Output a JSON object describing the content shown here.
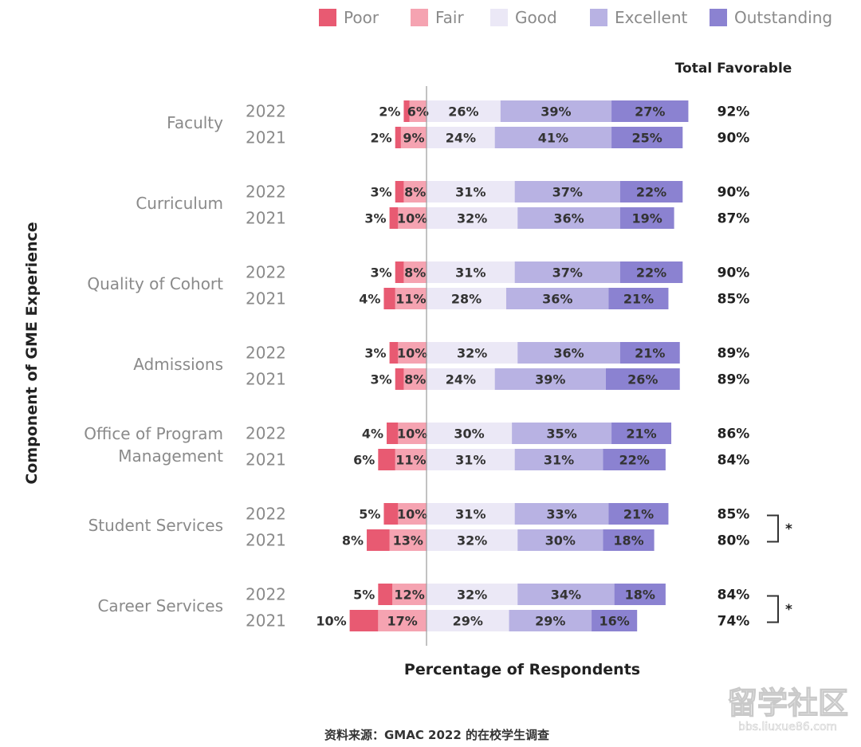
{
  "chart_data": {
    "type": "bar",
    "stacked": true,
    "orientation": "horizontal",
    "diverging": true,
    "xlabel": "Percentage of Respondents",
    "ylabel": "Component of GME Experience",
    "total_header": "Total Favorable",
    "legend": [
      {
        "name": "Poor",
        "color": "#e85a72"
      },
      {
        "name": "Fair",
        "color": "#f5a3b1"
      },
      {
        "name": "Good",
        "color": "#ebe8f6"
      },
      {
        "name": "Excellent",
        "color": "#b8b2e3"
      },
      {
        "name": "Outstanding",
        "color": "#8b82d1"
      }
    ],
    "legend_placement": "top",
    "groups": [
      {
        "category": "Faculty",
        "rows": [
          {
            "year": "2022",
            "values": [
              2,
              6,
              26,
              39,
              27
            ],
            "labels": [
              "2%",
              "6%",
              "26%",
              "39%",
              "27%"
            ],
            "total": "92%"
          },
          {
            "year": "2021",
            "values": [
              2,
              9,
              24,
              41,
              25
            ],
            "labels": [
              "2%",
              "9%",
              "24%",
              "41%",
              "25%"
            ],
            "total": "90%"
          }
        ]
      },
      {
        "category": "Curriculum",
        "rows": [
          {
            "year": "2022",
            "values": [
              3,
              8,
              31,
              37,
              22
            ],
            "labels": [
              "3%",
              "8%",
              "31%",
              "37%",
              "22%"
            ],
            "total": "90%"
          },
          {
            "year": "2021",
            "values": [
              3,
              10,
              32,
              36,
              19
            ],
            "labels": [
              "3%",
              "10%",
              "32%",
              "36%",
              "19%"
            ],
            "total": "87%"
          }
        ]
      },
      {
        "category": "Quality of Cohort",
        "rows": [
          {
            "year": "2022",
            "values": [
              3,
              8,
              31,
              37,
              22
            ],
            "labels": [
              "3%",
              "8%",
              "31%",
              "37%",
              "22%"
            ],
            "total": "90%"
          },
          {
            "year": "2021",
            "values": [
              4,
              11,
              28,
              36,
              21
            ],
            "labels": [
              "4%",
              "11%",
              "28%",
              "36%",
              "21%"
            ],
            "total": "85%"
          }
        ]
      },
      {
        "category": "Admissions",
        "rows": [
          {
            "year": "2022",
            "values": [
              3,
              10,
              32,
              36,
              21
            ],
            "labels": [
              "3%",
              "10%",
              "32%",
              "36%",
              "21%"
            ],
            "total": "89%"
          },
          {
            "year": "2021",
            "values": [
              3,
              8,
              24,
              39,
              26
            ],
            "labels": [
              "3%",
              "8%",
              "24%",
              "39%",
              "26%"
            ],
            "total": "89%"
          }
        ]
      },
      {
        "category": "Office of Program Management",
        "category_lines": [
          "Office of Program",
          "Management"
        ],
        "rows": [
          {
            "year": "2022",
            "values": [
              4,
              10,
              30,
              35,
              21
            ],
            "labels": [
              "4%",
              "10%",
              "30%",
              "35%",
              "21%"
            ],
            "total": "86%"
          },
          {
            "year": "2021",
            "values": [
              6,
              11,
              31,
              31,
              22
            ],
            "labels": [
              "6%",
              "11%",
              "31%",
              "31%",
              "22%"
            ],
            "total": "84%"
          }
        ]
      },
      {
        "category": "Student Services",
        "significance": "*",
        "rows": [
          {
            "year": "2022",
            "values": [
              5,
              10,
              31,
              33,
              21
            ],
            "labels": [
              "5%",
              "10%",
              "31%",
              "33%",
              "21%"
            ],
            "total": "85%"
          },
          {
            "year": "2021",
            "values": [
              8,
              13,
              32,
              30,
              18
            ],
            "labels": [
              "8%",
              "13%",
              "32%",
              "30%",
              "18%"
            ],
            "total": "80%"
          }
        ]
      },
      {
        "category": "Career Services",
        "significance": "*",
        "rows": [
          {
            "year": "2022",
            "values": [
              5,
              12,
              32,
              34,
              18
            ],
            "labels": [
              "5%",
              "12%",
              "32%",
              "34%",
              "18%"
            ],
            "total": "84%"
          },
          {
            "year": "2021",
            "values": [
              10,
              17,
              29,
              29,
              16
            ],
            "labels": [
              "10%",
              "17%",
              "29%",
              "29%",
              "16%"
            ],
            "total": "74%"
          }
        ]
      }
    ]
  },
  "source_note": "资料来源：GMAC 2022 的在校学生调查",
  "watermark": {
    "main": "留学社区",
    "sub": "bbs.liuxue86.com"
  }
}
